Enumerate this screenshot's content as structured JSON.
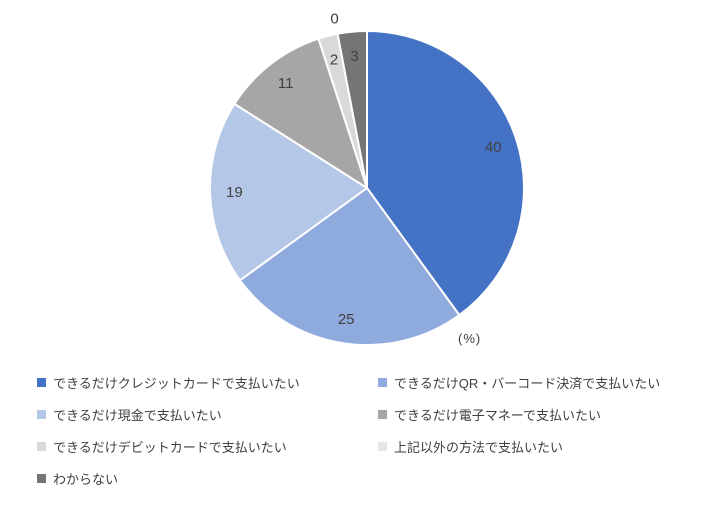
{
  "chart_data": {
    "type": "pie",
    "title": "",
    "unit_label": "(%)",
    "start_angle_deg": 0,
    "direction": "clockwise",
    "total": 100,
    "legend_position": "bottom",
    "legend_columns": 2,
    "value_label_color": "#404040",
    "slices": [
      {
        "label": "できるだけクレジットカードで支払いたい",
        "value": 40,
        "color": "#4472C4"
      },
      {
        "label": "できるだけQR・バーコード決済で支払いたい",
        "value": 25,
        "color": "#8FAADC"
      },
      {
        "label": "できるだけ現金で支払いたい",
        "value": 19,
        "color": "#B4C7E7"
      },
      {
        "label": "できるだけ電子マネーで支払いたい",
        "value": 11,
        "color": "#A6A6A6"
      },
      {
        "label": "できるだけデビットカードで支払いたい",
        "value": 2,
        "color": "#D9D9D9"
      },
      {
        "label": "上記以外の方法で支払いたい",
        "value": 0,
        "color": "#E7E6E6"
      },
      {
        "label": "わからない",
        "value": 3,
        "color": "#757575"
      }
    ]
  }
}
